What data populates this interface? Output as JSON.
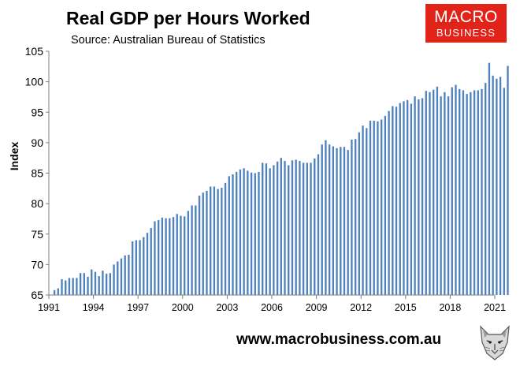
{
  "header": {
    "title": "Real GDP per Hours Worked",
    "subtitle": "Source: Australian Bureau of Statistics"
  },
  "logo": {
    "line1": "MACRO",
    "line2": "BUSINESS"
  },
  "footer": {
    "url": "www.macrobusiness.com.au"
  },
  "colors": {
    "bar": "#4f81bd",
    "logo_bg": "#e2231a",
    "axis": "#808080"
  },
  "icons": {
    "mascot": "wolf-face-icon"
  },
  "chart_data": {
    "type": "bar",
    "title": "Real GDP per Hours Worked",
    "subtitle": "Source: Australian Bureau of Statistics",
    "ylabel": "Index",
    "xlabel": "",
    "ylim": [
      65,
      105
    ],
    "xlim": [
      1991,
      2021
    ],
    "yticks": [
      65,
      70,
      75,
      80,
      85,
      90,
      95,
      100,
      105
    ],
    "xticks": [
      "1991",
      "1994",
      "1997",
      "2000",
      "2003",
      "2006",
      "2009",
      "2012",
      "2015",
      "2018",
      "2021"
    ],
    "grid": false,
    "legend": "none",
    "series": [
      {
        "x_start": "1991-06",
        "frequency": "quarterly",
        "values": [
          65.8,
          66.1,
          67.6,
          67.4,
          67.8,
          67.8,
          67.8,
          68.6,
          68.6,
          68.0,
          69.2,
          68.8,
          68.1,
          69.0,
          68.5,
          68.6,
          70.0,
          70.5,
          71.0,
          71.5,
          71.6,
          73.8,
          74.0,
          74.0,
          74.5,
          75.2,
          76.0,
          77.1,
          77.3,
          77.7,
          77.6,
          77.6,
          77.8,
          78.3,
          78.0,
          77.9,
          78.8,
          79.7,
          79.7,
          81.3,
          81.8,
          82.1,
          82.8,
          82.8,
          82.4,
          82.6,
          83.4,
          84.5,
          84.8,
          85.2,
          85.6,
          85.8,
          85.4,
          85.1,
          85.0,
          85.2,
          86.7,
          86.6,
          85.8,
          86.3,
          86.9,
          87.5,
          87.0,
          86.3,
          87.1,
          87.2,
          87.0,
          86.7,
          86.7,
          86.7,
          87.4,
          88.1,
          89.7,
          90.4,
          89.7,
          89.4,
          89.1,
          89.3,
          89.3,
          88.8,
          90.5,
          90.6,
          91.7,
          92.8,
          92.4,
          93.6,
          93.6,
          93.5,
          93.8,
          94.4,
          95.2,
          96.0,
          95.9,
          96.5,
          96.8,
          97.0,
          96.4,
          97.6,
          97.1,
          97.3,
          98.5,
          98.3,
          98.7,
          99.2,
          97.6,
          98.3,
          97.6,
          99.1,
          99.5,
          98.8,
          98.6,
          98.0,
          98.3,
          98.6,
          98.6,
          98.8,
          99.8,
          103.1,
          101.0,
          100.5,
          100.8,
          99.0,
          102.6
        ]
      }
    ]
  }
}
